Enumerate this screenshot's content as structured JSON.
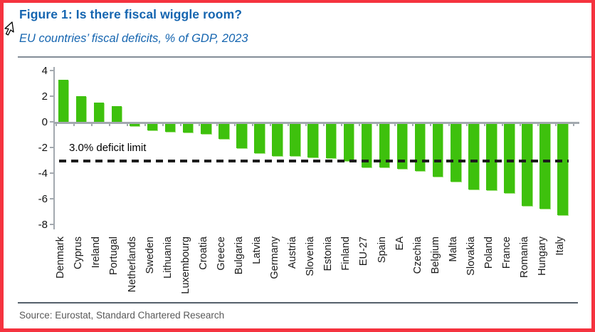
{
  "header": {
    "title": "Figure 1: Is there fiscal wiggle room?",
    "subtitle": "EU countries’ fiscal deficits, % of GDP, 2023"
  },
  "footer": {
    "source": "Source: Eurostat, Standard Chartered Research"
  },
  "colors": {
    "frame_red": "#f5333f",
    "heading_blue": "#1565b0",
    "bar_green": "#3ec10d",
    "axis_grey": "#a3a9af",
    "dash_black": "#1c1c1c"
  },
  "chart_data": {
    "type": "bar",
    "title": "EU countries’ fiscal deficits, % of GDP, 2023",
    "categories": [
      "Denmark",
      "Cyprus",
      "Ireland",
      "Portugal",
      "Netherlands",
      "Sweden",
      "Lithuania",
      "Luxembourg",
      "Croatia",
      "Greece",
      "Bulgaria",
      "Latvia",
      "Germany",
      "Austria",
      "Slovenia",
      "Estonia",
      "Finland",
      "EU-27",
      "Spain",
      "EA",
      "Czechia",
      "Belgium",
      "Malta",
      "Slovakia",
      "Poland",
      "France",
      "Romania",
      "Hungary",
      "Italy"
    ],
    "values": [
      3.3,
      2.0,
      1.5,
      1.2,
      -0.3,
      -0.6,
      -0.7,
      -0.8,
      -0.9,
      -1.3,
      -2.0,
      -2.4,
      -2.6,
      -2.6,
      -2.7,
      -2.8,
      -3.0,
      -3.5,
      -3.5,
      -3.6,
      -3.8,
      -4.2,
      -4.6,
      -5.2,
      -5.3,
      -5.5,
      -6.5,
      -6.7,
      -7.2
    ],
    "xlabel": "",
    "ylabel": "% of GDP",
    "ylim": [
      -8.3,
      4.4
    ],
    "yticks": [
      4,
      2,
      0,
      -2,
      -4,
      -6,
      -8
    ],
    "grid": false,
    "legend": false,
    "reference_line": {
      "value": -3.0,
      "label": "3.0% deficit limit",
      "style": "dashed"
    }
  }
}
